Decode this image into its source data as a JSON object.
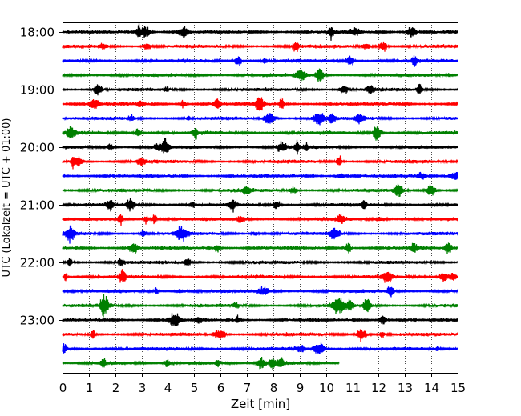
{
  "chart_data": {
    "type": "line",
    "title": "",
    "xlabel": "Zeit  [min]",
    "ylabel": "UTC (Lokalzeit = UTC + 01:00)",
    "xlim": [
      0,
      15
    ],
    "x_ticks": [
      0,
      1,
      2,
      3,
      4,
      5,
      6,
      7,
      8,
      9,
      10,
      11,
      12,
      13,
      14,
      15
    ],
    "x_tick_labels": [
      "0",
      "1",
      "2",
      "3",
      "4",
      "5",
      "6",
      "7",
      "8",
      "9",
      "10",
      "11",
      "12",
      "13",
      "14",
      "15"
    ],
    "y_tick_labels": [
      "18:00",
      "19:00",
      "20:00",
      "21:00",
      "22:00",
      "23:00"
    ],
    "grid": "vertical-dotted",
    "trace_interval_min": 15,
    "colors": [
      "#000000",
      "#ff0000",
      "#0000ff",
      "#008000"
    ],
    "traces": [
      {
        "start": "18:00",
        "color": "#000000",
        "end_min": 15
      },
      {
        "start": "18:15",
        "color": "#ff0000",
        "end_min": 15
      },
      {
        "start": "18:30",
        "color": "#0000ff",
        "end_min": 15
      },
      {
        "start": "18:45",
        "color": "#008000",
        "end_min": 15
      },
      {
        "start": "19:00",
        "color": "#000000",
        "end_min": 15
      },
      {
        "start": "19:15",
        "color": "#ff0000",
        "end_min": 15
      },
      {
        "start": "19:30",
        "color": "#0000ff",
        "end_min": 15
      },
      {
        "start": "19:45",
        "color": "#008000",
        "end_min": 15
      },
      {
        "start": "20:00",
        "color": "#000000",
        "end_min": 15
      },
      {
        "start": "20:15",
        "color": "#ff0000",
        "end_min": 15
      },
      {
        "start": "20:30",
        "color": "#0000ff",
        "end_min": 15
      },
      {
        "start": "20:45",
        "color": "#008000",
        "end_min": 15
      },
      {
        "start": "21:00",
        "color": "#000000",
        "end_min": 15
      },
      {
        "start": "21:15",
        "color": "#ff0000",
        "end_min": 15
      },
      {
        "start": "21:30",
        "color": "#0000ff",
        "end_min": 15
      },
      {
        "start": "21:45",
        "color": "#008000",
        "end_min": 15
      },
      {
        "start": "22:00",
        "color": "#000000",
        "end_min": 15
      },
      {
        "start": "22:15",
        "color": "#ff0000",
        "end_min": 15
      },
      {
        "start": "22:30",
        "color": "#0000ff",
        "end_min": 15
      },
      {
        "start": "22:45",
        "color": "#008000",
        "end_min": 15
      },
      {
        "start": "23:00",
        "color": "#000000",
        "end_min": 15
      },
      {
        "start": "23:15",
        "color": "#ff0000",
        "end_min": 15
      },
      {
        "start": "23:30",
        "color": "#0000ff",
        "end_min": 15
      },
      {
        "start": "23:45",
        "color": "#008000",
        "end_min": 10.5
      }
    ]
  }
}
